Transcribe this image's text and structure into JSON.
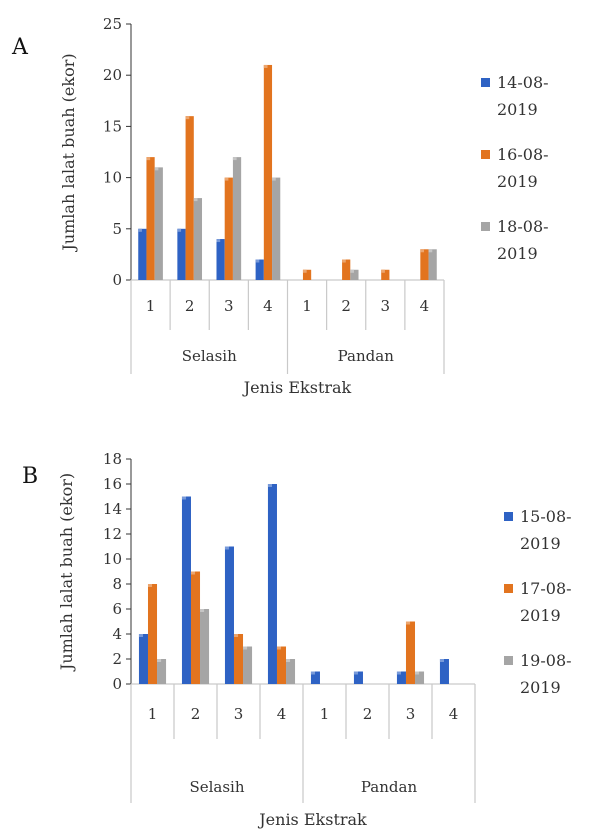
{
  "chart_data": [
    {
      "type": "bar",
      "panel_label": "A",
      "xlabel": "Jenis Ekstrak",
      "ylabel": "Jumlah lalat buah (ekor)",
      "ylim": [
        0,
        25
      ],
      "yticks": [
        0,
        5,
        10,
        15,
        20,
        25
      ],
      "groups": [
        "Selasih",
        "Pandan"
      ],
      "categories": [
        "1",
        "2",
        "3",
        "4",
        "1",
        "2",
        "3",
        "4"
      ],
      "legend_position": "right",
      "grid": false,
      "series": [
        {
          "name": "14-08-2019",
          "name_lines": [
            "14-08-",
            "2019"
          ],
          "color": "#2e62c4",
          "values": [
            5,
            5,
            4,
            2,
            0,
            0,
            0,
            0
          ]
        },
        {
          "name": "16-08-2019",
          "name_lines": [
            "16-08-",
            "2019"
          ],
          "color": "#e2741f",
          "values": [
            12,
            16,
            10,
            21,
            1,
            2,
            1,
            3
          ]
        },
        {
          "name": "18-08-2019",
          "name_lines": [
            "18-08-",
            "2019"
          ],
          "color": "#a5a5a5",
          "values": [
            11,
            8,
            12,
            10,
            0,
            1,
            0,
            3
          ]
        }
      ]
    },
    {
      "type": "bar",
      "panel_label": "B",
      "xlabel": "Jenis Ekstrak",
      "ylabel": "Jumlah lalat buah (ekor)",
      "ylim": [
        0,
        18
      ],
      "yticks": [
        0,
        2,
        4,
        6,
        8,
        10,
        12,
        14,
        16,
        18
      ],
      "groups": [
        "Selasih",
        "Pandan"
      ],
      "categories": [
        "1",
        "2",
        "3",
        "4",
        "1",
        "2",
        "3",
        "4"
      ],
      "legend_position": "right",
      "grid": false,
      "series": [
        {
          "name": "15-08-2019",
          "name_lines": [
            "15-08-",
            "2019"
          ],
          "color": "#2e62c4",
          "values": [
            4,
            15,
            11,
            16,
            1,
            1,
            1,
            2
          ]
        },
        {
          "name": "17-08-2019",
          "name_lines": [
            "17-08-",
            "2019"
          ],
          "color": "#e2741f",
          "values": [
            8,
            9,
            4,
            3,
            0,
            0,
            5,
            0
          ]
        },
        {
          "name": "19-08-2019",
          "name_lines": [
            "19-08-",
            "2019"
          ],
          "color": "#a5a5a5",
          "values": [
            2,
            6,
            3,
            2,
            0,
            0,
            1,
            0
          ]
        }
      ]
    }
  ]
}
